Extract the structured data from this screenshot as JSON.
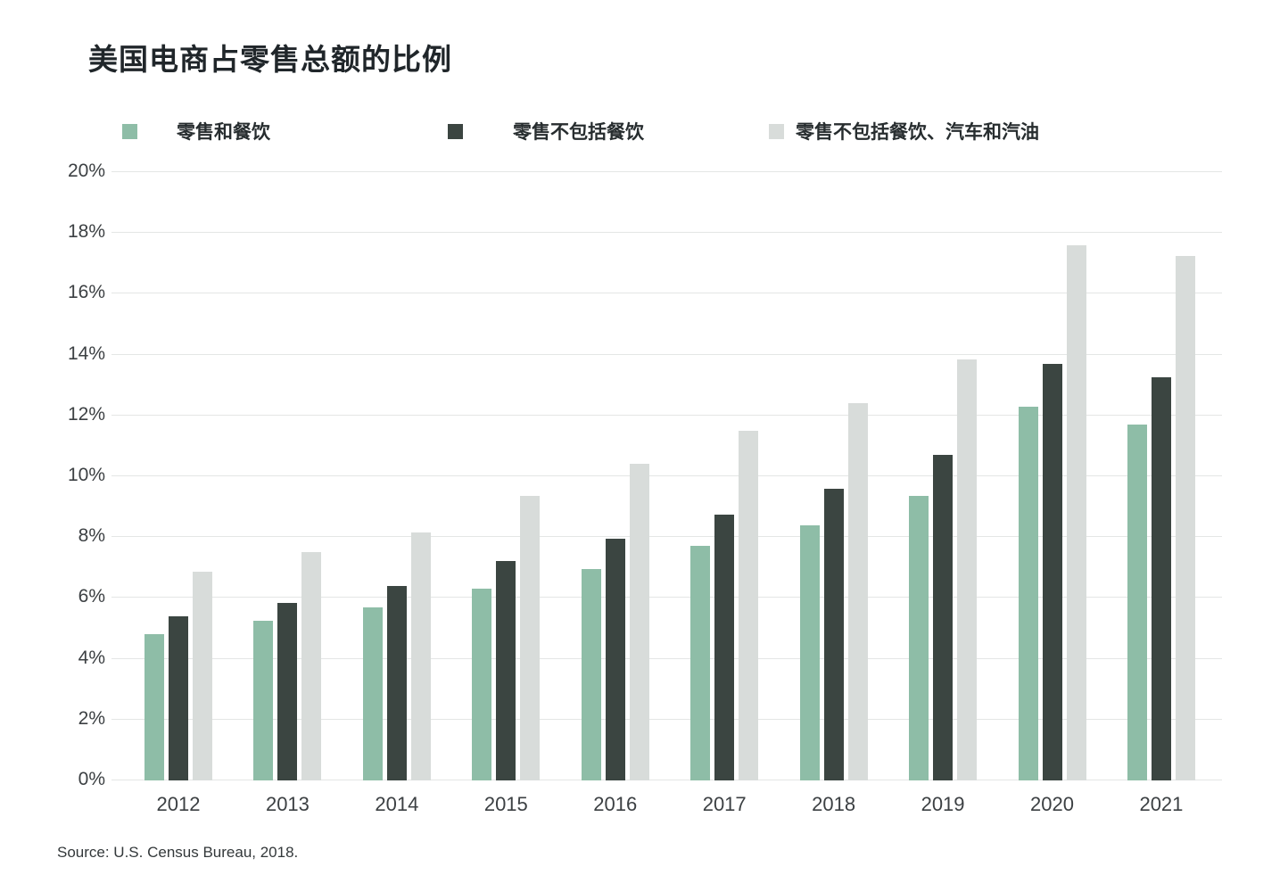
{
  "page": {
    "title": "美国电商占零售总额的比例",
    "source_note": "Source: U.S. Census Bureau, 2018."
  },
  "chart_data": {
    "type": "bar",
    "title": "美国电商占零售总额的比例",
    "categories": [
      "2012",
      "2013",
      "2014",
      "2015",
      "2016",
      "2017",
      "2018",
      "2019",
      "2020",
      "2021"
    ],
    "series": [
      {
        "name": "零售和餐饮",
        "color": "#8ebda7",
        "values": [
          4.8,
          5.25,
          5.7,
          6.3,
          6.95,
          7.7,
          8.4,
          9.35,
          12.3,
          11.7
        ]
      },
      {
        "name": "零售不包括餐饮",
        "color": "#3b4541",
        "values": [
          5.4,
          5.85,
          6.4,
          7.2,
          7.95,
          8.75,
          9.6,
          10.7,
          13.7,
          13.25
        ]
      },
      {
        "name": "零售不包括餐饮、汽车和汽油",
        "color": "#d8dcda",
        "values": [
          6.85,
          7.5,
          8.15,
          9.35,
          10.4,
          11.5,
          12.4,
          13.85,
          17.6,
          17.25
        ]
      }
    ],
    "ylim": [
      0,
      20
    ],
    "ytick_step": 2,
    "ytick_suffix": "%",
    "grid": "horizontal",
    "legend_position": "top",
    "source": "Source: U.S. Census Bureau, 2018."
  }
}
